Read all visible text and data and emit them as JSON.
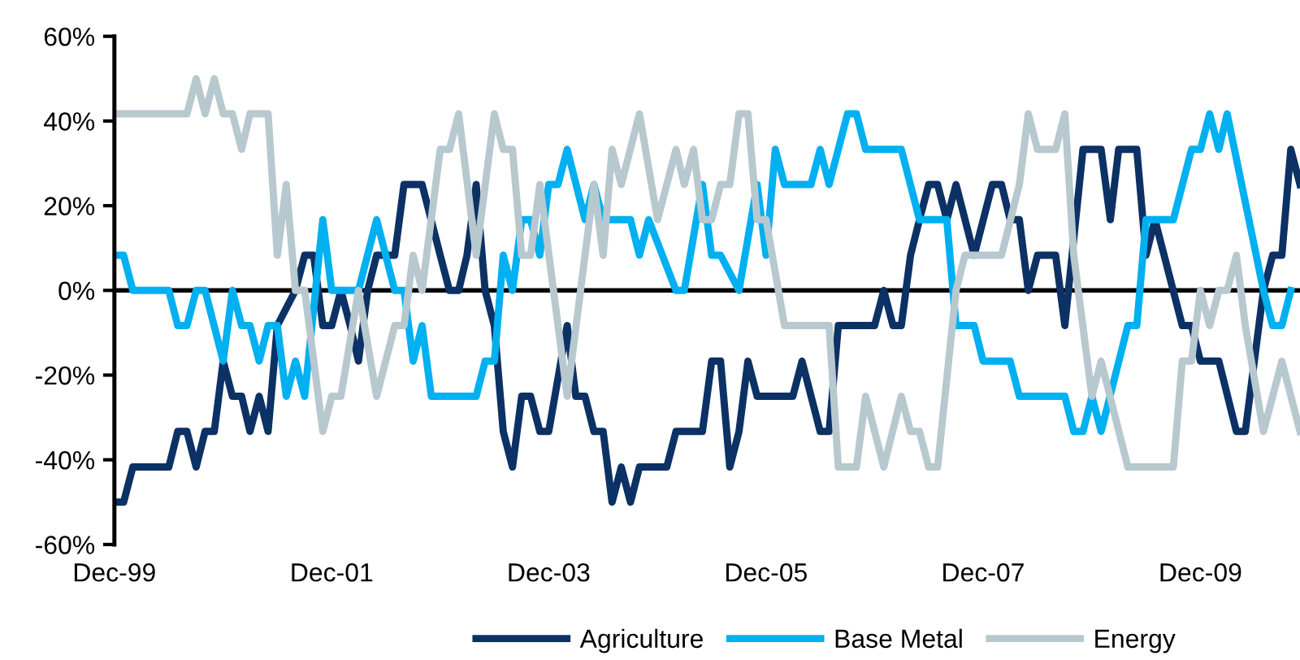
{
  "chart_data": {
    "type": "line",
    "xlim": [
      "1999-12",
      "2010-11"
    ],
    "xticks": [
      {
        "value": "1999-12",
        "label": "Dec-99"
      },
      {
        "value": "2001-12",
        "label": "Dec-01"
      },
      {
        "value": "2003-12",
        "label": "Dec-03"
      },
      {
        "value": "2005-12",
        "label": "Dec-05"
      },
      {
        "value": "2007-12",
        "label": "Dec-07"
      },
      {
        "value": "2009-12",
        "label": "Dec-09"
      }
    ],
    "ylim": [
      -60,
      60
    ],
    "yticks": [
      {
        "value": -60,
        "label": "-60%"
      },
      {
        "value": -40,
        "label": "-40%"
      },
      {
        "value": -20,
        "label": "-20%"
      },
      {
        "value": 0,
        "label": "0%"
      },
      {
        "value": 20,
        "label": "20%"
      },
      {
        "value": 40,
        "label": "40%"
      },
      {
        "value": 60,
        "label": "60%"
      }
    ],
    "grid": false,
    "ref_lines": [
      {
        "axis": "y",
        "value": 0,
        "color": "#000000"
      }
    ],
    "legend": "bottom",
    "marker": "none",
    "line_style": "solid",
    "series": [
      {
        "name": "Agriculture",
        "color": "#0c3164",
        "x": [
          "1999-12",
          "2000-01",
          "2000-02",
          "2000-06",
          "2000-07",
          "2000-08",
          "2000-09",
          "2000-10",
          "2000-11",
          "2000-12",
          "2001-01",
          "2001-02",
          "2001-03",
          "2001-04",
          "2001-05",
          "2001-06",
          "2001-08",
          "2001-09",
          "2001-10",
          "2001-11",
          "2001-12",
          "2002-01",
          "2002-02",
          "2002-03",
          "2002-04",
          "2002-05",
          "2002-07",
          "2002-08",
          "2002-10",
          "2002-12",
          "2003-01",
          "2003-02",
          "2003-03",
          "2003-04",
          "2003-05",
          "2003-06",
          "2003-07",
          "2003-08",
          "2003-09",
          "2003-10",
          "2003-11",
          "2003-12",
          "2004-02",
          "2004-03",
          "2004-04",
          "2004-05",
          "2004-06",
          "2004-07",
          "2004-08",
          "2004-09",
          "2004-10",
          "2005-01",
          "2005-02",
          "2005-05",
          "2005-06",
          "2005-07",
          "2005-08",
          "2005-09",
          "2005-10",
          "2005-11",
          "2006-03",
          "2006-04",
          "2006-06",
          "2006-07",
          "2006-08",
          "2006-12",
          "2007-01",
          "2007-02",
          "2007-03",
          "2007-04",
          "2007-05",
          "2007-06",
          "2007-07",
          "2007-08",
          "2007-09",
          "2007-11",
          "2008-01",
          "2008-02",
          "2008-03",
          "2008-04",
          "2008-05",
          "2008-06",
          "2008-08",
          "2008-09",
          "2008-11",
          "2009-01",
          "2009-02",
          "2009-03",
          "2009-05",
          "2009-06",
          "2009-07",
          "2009-08",
          "2009-10",
          "2009-11",
          "2009-12",
          "2010-02",
          "2010-04",
          "2010-05",
          "2010-07",
          "2010-08",
          "2010-09",
          "2010-10",
          "2010-11"
        ],
        "values": [
          -50,
          -50,
          -41.7,
          -41.7,
          -33.3,
          -33.3,
          -41.7,
          -33.3,
          -33.3,
          -16.7,
          -25,
          -25,
          -33.3,
          -25,
          -33.3,
          -8.3,
          0,
          8.3,
          8.3,
          -8.3,
          -8.3,
          0,
          -8.3,
          -16.7,
          0,
          8.3,
          8.3,
          25,
          25,
          8.3,
          0,
          0,
          8.3,
          25,
          0,
          -8.3,
          -33.3,
          -41.7,
          -25,
          -25,
          -33.3,
          -33.3,
          -8.3,
          -25,
          -25,
          -33.3,
          -33.3,
          -50,
          -41.7,
          -50,
          -41.7,
          -41.7,
          -33.3,
          -33.3,
          -16.7,
          -16.7,
          -41.7,
          -33.3,
          -16.7,
          -25,
          -25,
          -16.7,
          -33.3,
          -33.3,
          -8.3,
          -8.3,
          0,
          -8.3,
          -8.3,
          8.3,
          16.7,
          25,
          25,
          16.7,
          25,
          8.3,
          25,
          25,
          16.7,
          16.7,
          0,
          8.3,
          8.3,
          -8.3,
          33.3,
          33.3,
          16.7,
          33.3,
          33.3,
          8.3,
          16.7,
          8.3,
          -8.3,
          -8.3,
          -16.7,
          -16.7,
          -33.3,
          -33.3,
          0,
          8.3,
          8.3,
          33.3,
          25
        ]
      },
      {
        "name": "Base Metal",
        "color": "#00b0f0",
        "x": [
          "1999-12",
          "2000-01",
          "2000-02",
          "2000-06",
          "2000-07",
          "2000-08",
          "2000-09",
          "2000-10",
          "2000-12",
          "2001-01",
          "2001-02",
          "2001-03",
          "2001-04",
          "2001-05",
          "2001-06",
          "2001-07",
          "2001-08",
          "2001-09",
          "2001-11",
          "2001-12",
          "2002-03",
          "2002-05",
          "2002-07",
          "2002-08",
          "2002-09",
          "2002-10",
          "2002-11",
          "2003-04",
          "2003-05",
          "2003-06",
          "2003-07",
          "2003-08",
          "2003-09",
          "2003-10",
          "2003-11",
          "2003-12",
          "2004-01",
          "2004-02",
          "2004-04",
          "2004-05",
          "2004-06",
          "2004-09",
          "2004-10",
          "2004-11",
          "2005-02",
          "2005-03",
          "2005-05",
          "2005-06",
          "2005-07",
          "2005-09",
          "2005-11",
          "2005-12",
          "2006-01",
          "2006-02",
          "2006-05",
          "2006-06",
          "2006-07",
          "2006-09",
          "2006-10",
          "2006-11",
          "2007-03",
          "2007-05",
          "2007-08",
          "2007-09",
          "2007-11",
          "2007-12",
          "2008-03",
          "2008-04",
          "2008-09",
          "2008-10",
          "2008-11",
          "2008-12",
          "2009-01",
          "2009-04",
          "2009-05",
          "2009-06",
          "2009-09",
          "2009-11",
          "2009-12",
          "2010-01",
          "2010-02",
          "2010-03",
          "2010-07",
          "2010-08",
          "2010-09",
          "2010-10"
        ],
        "values": [
          8.3,
          8.3,
          0,
          0,
          -8.3,
          -8.3,
          0,
          0,
          -16.7,
          0,
          -8.3,
          -8.3,
          -16.7,
          -8.3,
          -8.3,
          -25,
          -16.7,
          -25,
          16.7,
          0,
          0,
          16.7,
          0,
          0,
          -16.7,
          -8.3,
          -25,
          -25,
          -16.7,
          -16.7,
          8.3,
          0,
          16.7,
          16.7,
          8.3,
          25,
          25,
          33.3,
          16.7,
          25,
          16.7,
          16.7,
          8.3,
          16.7,
          0,
          0,
          25,
          8.3,
          8.3,
          0,
          25,
          8.3,
          33.3,
          25,
          25,
          33.3,
          25,
          41.7,
          41.7,
          33.3,
          33.3,
          16.7,
          16.7,
          -8.3,
          -8.3,
          -16.7,
          -16.7,
          -25,
          -25,
          -33.3,
          -33.3,
          -25,
          -33.3,
          -8.3,
          -8.3,
          16.7,
          16.7,
          33.3,
          33.3,
          41.7,
          33.3,
          41.7,
          0,
          -8.3,
          -8.3,
          0
        ]
      },
      {
        "name": "Energy",
        "color": "#b8c8cf",
        "x": [
          "1999-12",
          "2000-08",
          "2000-09",
          "2000-10",
          "2000-11",
          "2000-12",
          "2001-01",
          "2001-02",
          "2001-03",
          "2001-05",
          "2001-06",
          "2001-07",
          "2001-08",
          "2001-09",
          "2001-11",
          "2001-12",
          "2002-01",
          "2002-03",
          "2002-05",
          "2002-07",
          "2002-08",
          "2002-09",
          "2002-10",
          "2002-12",
          "2003-01",
          "2003-02",
          "2003-04",
          "2003-06",
          "2003-07",
          "2003-08",
          "2003-09",
          "2003-10",
          "2003-11",
          "2004-02",
          "2004-04",
          "2004-05",
          "2004-06",
          "2004-07",
          "2004-08",
          "2004-10",
          "2004-12",
          "2005-02",
          "2005-03",
          "2005-04",
          "2005-05",
          "2005-06",
          "2005-07",
          "2005-08",
          "2005-09",
          "2005-10",
          "2005-11",
          "2005-12",
          "2006-02",
          "2006-07",
          "2006-08",
          "2006-10",
          "2006-11",
          "2007-01",
          "2007-03",
          "2007-04",
          "2007-05",
          "2007-06",
          "2007-07",
          "2007-09",
          "2007-10",
          "2008-02",
          "2008-04",
          "2008-05",
          "2008-06",
          "2008-08",
          "2008-09",
          "2008-10",
          "2008-12",
          "2009-01",
          "2009-04",
          "2009-09",
          "2009-10",
          "2009-11",
          "2009-12",
          "2010-01",
          "2010-02",
          "2010-03",
          "2010-04",
          "2010-05",
          "2010-07",
          "2010-09",
          "2010-11"
        ],
        "values": [
          41.7,
          41.7,
          50,
          41.7,
          50,
          41.7,
          41.7,
          33.3,
          41.7,
          41.7,
          8.3,
          25,
          0,
          0,
          -33.3,
          -25,
          -25,
          0,
          -25,
          -8.3,
          -8.3,
          8.3,
          0,
          33.3,
          33.3,
          41.7,
          8.3,
          41.7,
          33.3,
          33.3,
          8.3,
          8.3,
          25,
          -25,
          8.3,
          25,
          8.3,
          33.3,
          25,
          41.7,
          16.7,
          33.3,
          25,
          33.3,
          16.7,
          16.7,
          25,
          25,
          41.7,
          41.7,
          16.7,
          16.7,
          -8.3,
          -8.3,
          -41.7,
          -41.7,
          -25,
          -41.7,
          -25,
          -33.3,
          -33.3,
          -41.7,
          -41.7,
          0,
          8.3,
          8.3,
          25,
          41.7,
          33.3,
          33.3,
          41.7,
          8.3,
          -25,
          -16.7,
          -41.7,
          -41.7,
          -16.7,
          -16.7,
          0,
          -8.3,
          0,
          0,
          8.3,
          -8.3,
          -33.3,
          -16.7,
          -33.3
        ]
      }
    ]
  }
}
